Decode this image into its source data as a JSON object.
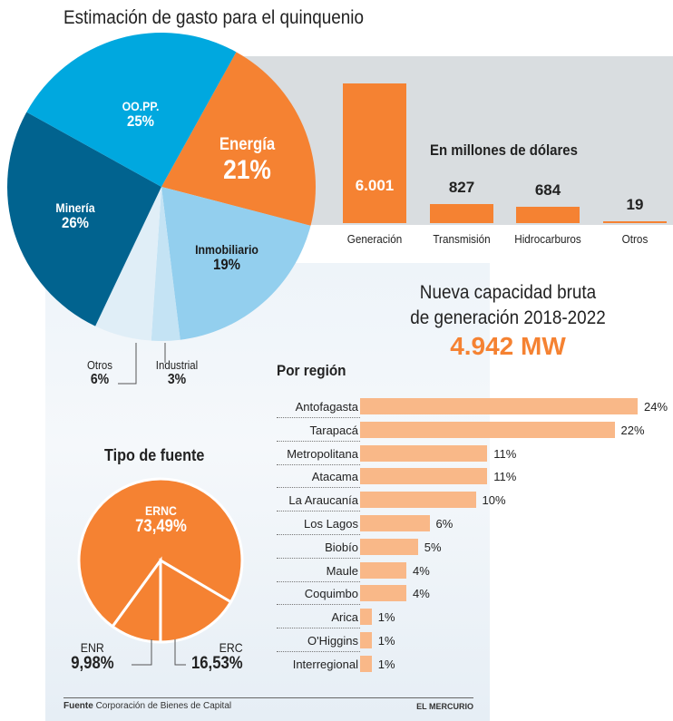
{
  "title": "Estimación de gasto para el quinquenio",
  "chart_data": [
    {
      "type": "pie",
      "title": "Estimación de gasto para el quinquenio",
      "slices": [
        {
          "label": "Energía",
          "value": 21,
          "text": "21%",
          "color": "#f58232"
        },
        {
          "label": "Inmobiliario",
          "value": 19,
          "text": "19%",
          "color": "#93cfee"
        },
        {
          "label": "Industrial",
          "value": 3,
          "text": "3%",
          "color": "#c4e3f4"
        },
        {
          "label": "Otros",
          "value": 6,
          "text": "6%",
          "color": "#e0eef7"
        },
        {
          "label": "Minería",
          "value": 26,
          "text": "26%",
          "color": "#01638f"
        },
        {
          "label": "OO.PP.",
          "value": 25,
          "text": "25%",
          "color": "#00a8df"
        }
      ]
    },
    {
      "type": "bar",
      "title": "En millones de dólares",
      "categories": [
        "Generación",
        "Transmisión",
        "Hidrocarburos",
        "Otros"
      ],
      "values": [
        6001,
        827,
        684,
        19
      ],
      "labels": [
        "6.001",
        "827",
        "684",
        "19"
      ],
      "color": "#f58232"
    },
    {
      "type": "bar",
      "orientation": "horizontal",
      "title": "Por región",
      "categories": [
        "Antofagasta",
        "Tarapacá",
        "Metropolitana",
        "Atacama",
        "La Araucanía",
        "Los Lagos",
        "Biobío",
        "Maule",
        "Coquimbo",
        "Arica",
        "O'Higgins",
        "Interregional"
      ],
      "values": [
        24,
        22,
        11,
        11,
        10,
        6,
        5,
        4,
        4,
        1,
        1,
        1
      ],
      "labels": [
        "24%",
        "22%",
        "11%",
        "11%",
        "10%",
        "6%",
        "5%",
        "4%",
        "4%",
        "1%",
        "1%",
        "1%"
      ],
      "color": "#f9b888"
    },
    {
      "type": "pie",
      "title": "Tipo de fuente",
      "slices": [
        {
          "label": "ERNC",
          "value": 73.49,
          "text": "73,49%"
        },
        {
          "label": "ERC",
          "value": 16.53,
          "text": "16,53%"
        },
        {
          "label": "ENR",
          "value": 9.98,
          "text": "9,98%"
        }
      ],
      "color": "#f58232"
    }
  ],
  "capacity": {
    "line1": "Nueva capacidad bruta",
    "line2": "de generación 2018-2022",
    "value": "4.942 MW"
  },
  "footer": {
    "source_label": "Fuente",
    "source": "Corporación de Bienes de Capital",
    "brand": "EL MERCURIO"
  }
}
